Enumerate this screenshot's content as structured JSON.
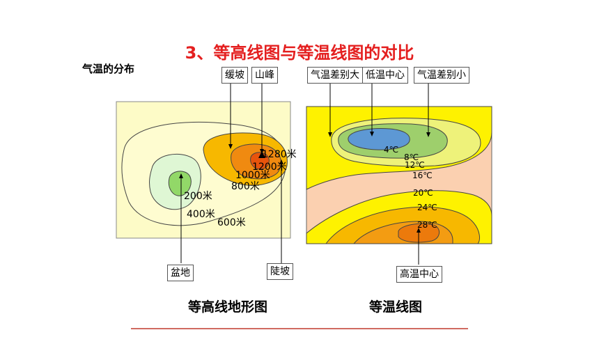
{
  "title": "3、等高线图与等温线图的对比",
  "section_label": "气温的分布",
  "left_map": {
    "callouts": {
      "gentle_slope": "缓坡",
      "peak": "山峰",
      "basin": "盆地",
      "steep_slope": "陡坡"
    },
    "contour_labels": [
      "1280米",
      "1200米",
      "1000米",
      "800米",
      "200米",
      "400米",
      "600米"
    ],
    "caption": "等高线地形图"
  },
  "right_map": {
    "callouts": {
      "large_difference": "气温差别大",
      "low_center": "低温中心",
      "small_difference": "气温差别小",
      "high_center": "高温中心"
    },
    "isotherm_labels": [
      "4℃",
      "8℃",
      "12℃",
      "16℃",
      "20℃",
      "24℃",
      "28℃"
    ],
    "caption": "等温线图"
  },
  "colors": {
    "title_red": "#e41f1f",
    "divider": "#c0392b"
  }
}
